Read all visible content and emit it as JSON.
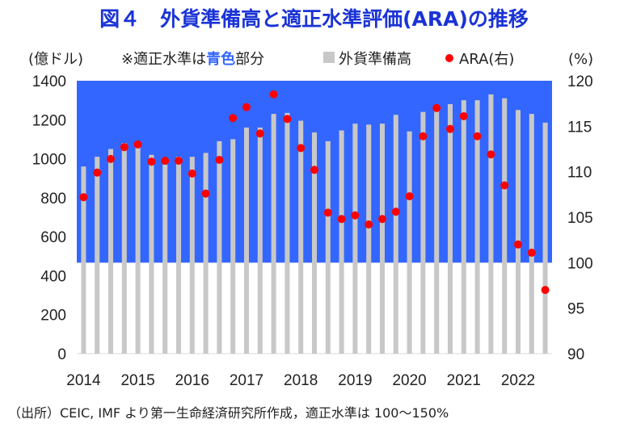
{
  "title": "図４　外貨準備高と適正水準評価(ARA)の推移",
  "source": "（出所）CEIC, IMF より第一生命経済研究所作成，適正水準は 100～150%",
  "colors": {
    "adequate_band": "#3366ff",
    "bar": "#c8c8c8",
    "point": "#ff0000",
    "title": "#1a33d6",
    "highlight_text": "#3366ff"
  },
  "chart_data": {
    "type": "bar",
    "left_axis": {
      "label": "(億ドル)",
      "min": 0,
      "max": 1400,
      "ticks": [
        "0",
        "200",
        "400",
        "600",
        "800",
        "1000",
        "1200",
        "1400"
      ]
    },
    "right_axis": {
      "label": "(%)",
      "min": 90,
      "max": 120,
      "ticks": [
        "90",
        "95",
        "100",
        "105",
        "110",
        "115",
        "120"
      ]
    },
    "x_labels": [
      "2014",
      "2015",
      "2016",
      "2017",
      "2018",
      "2019",
      "2020",
      "2021",
      "2022"
    ],
    "adequate_band": {
      "from": 100,
      "to": 150
    },
    "band_note": {
      "prefix": "※適正水準は",
      "highlight": "青色",
      "suffix": "部分"
    },
    "legend": {
      "bar_label": "外貨準備高",
      "point_label": "ARA(右)"
    },
    "series": [
      {
        "name": "外貨準備高",
        "axis": "left",
        "values": [
          960,
          1010,
          1050,
          1080,
          1070,
          1020,
          970,
          1010,
          1010,
          1030,
          1090,
          1100,
          1160,
          1160,
          1230,
          1235,
          1195,
          1135,
          1090,
          1145,
          1180,
          1175,
          1180,
          1225,
          1140,
          1240,
          1270,
          1280,
          1300,
          1300,
          1330,
          1310,
          1250,
          1230,
          1185
        ]
      },
      {
        "name": "ARA(右)",
        "axis": "right",
        "values": [
          107.2,
          109.9,
          111.4,
          112.7,
          113.0,
          111.1,
          111.2,
          111.2,
          109.8,
          107.6,
          111.3,
          115.9,
          117.1,
          114.2,
          118.5,
          115.8,
          112.6,
          110.2,
          105.5,
          104.8,
          105.2,
          104.2,
          104.8,
          105.6,
          107.3,
          113.9,
          117.0,
          114.7,
          116.1,
          113.9,
          111.9,
          108.5,
          102.0,
          101.1,
          97.0
        ]
      }
    ]
  }
}
